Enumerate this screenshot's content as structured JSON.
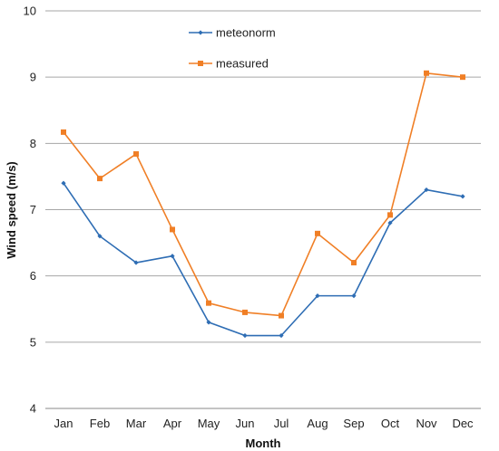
{
  "chart_data": {
    "type": "line",
    "title": "",
    "xlabel": "Month",
    "ylabel": "Wind speed (m/s)",
    "categories": [
      "Jan",
      "Feb",
      "Mar",
      "Apr",
      "May",
      "Jun",
      "Jul",
      "Aug",
      "Sep",
      "Oct",
      "Nov",
      "Dec"
    ],
    "ylim": [
      4,
      10
    ],
    "yticks": [
      "4",
      "5",
      "6",
      "7",
      "8",
      "9",
      "10"
    ],
    "grid": true,
    "legend_position": "top-center",
    "series": [
      {
        "name": "meteonorm",
        "color": "#2E6DB4",
        "marker": "diamond",
        "values": [
          7.4,
          6.6,
          6.2,
          6.3,
          5.3,
          5.1,
          5.1,
          5.7,
          5.7,
          6.8,
          7.3,
          7.2
        ]
      },
      {
        "name": "measured",
        "color": "#F07F26",
        "marker": "square",
        "values": [
          8.17,
          7.47,
          7.84,
          6.7,
          5.59,
          5.45,
          5.4,
          6.64,
          6.2,
          6.92,
          9.06,
          9.0
        ]
      }
    ]
  }
}
